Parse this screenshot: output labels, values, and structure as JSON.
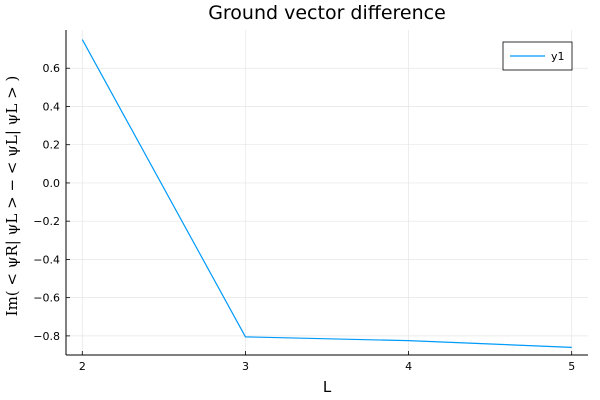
{
  "chart_data": {
    "type": "line",
    "title": "Ground vector difference",
    "xlabel": "L",
    "ylabel": "Im( < ψR| ψL > − < ψL| ψL > )",
    "x": [
      2,
      3,
      4,
      5
    ],
    "series": [
      {
        "name": "y1",
        "values": [
          0.75,
          -0.805,
          -0.825,
          -0.86
        ],
        "color": "#009af9"
      }
    ],
    "xlim": [
      1.9,
      5.1
    ],
    "ylim": [
      -0.9,
      0.8
    ],
    "xticks": [
      2,
      3,
      4,
      5
    ],
    "xtick_labels": [
      "2",
      "3",
      "4",
      "5"
    ],
    "yticks": [
      -0.8,
      -0.6,
      -0.4,
      -0.2,
      0.0,
      0.2,
      0.4,
      0.6
    ],
    "ytick_labels": [
      "−0.8",
      "−0.6",
      "−0.4",
      "−0.2",
      "0.0",
      "0.2",
      "0.4",
      "0.6"
    ],
    "grid": true,
    "legend_position": "top-right"
  }
}
